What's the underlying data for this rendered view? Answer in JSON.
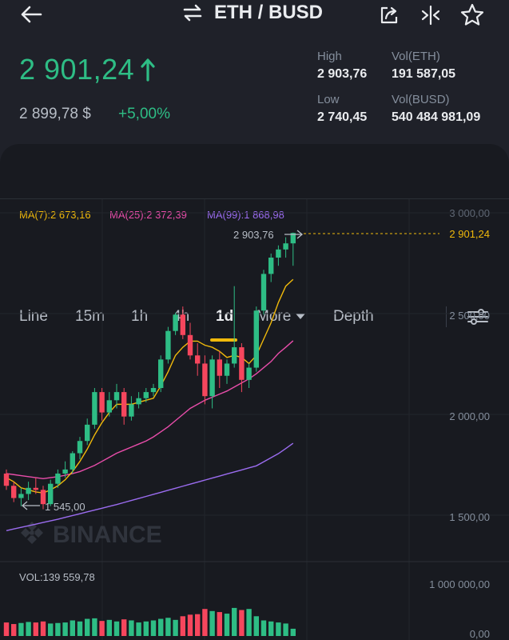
{
  "header": {
    "pair": "ETH / BUSD"
  },
  "ticker": {
    "last_price": "2 901,24",
    "usd_price": "2 899,78 $",
    "change": "+5,00%",
    "high_label": "High",
    "high_value": "2 903,76",
    "low_label": "Low",
    "low_value": "2 740,45",
    "vol_eth_label": "Vol(ETH)",
    "vol_eth_value": "191 587,05",
    "vol_busd_label": "Vol(BUSD)",
    "vol_busd_value": "540 484 981,09"
  },
  "tabs": [
    {
      "label": "Line"
    },
    {
      "label": "15m"
    },
    {
      "label": "1h"
    },
    {
      "label": "4h"
    },
    {
      "label": "1d"
    },
    {
      "label": "More"
    },
    {
      "label": "Depth"
    }
  ],
  "active_tab": "1d",
  "indicators": {
    "ma7": "MA(7):2 673,16",
    "ma25": "MA(25):2 372,39",
    "ma99": "MA(99):1 868,98"
  },
  "chart": {
    "high_marker": "2 903,76",
    "low_marker": "1 545,00",
    "last_price_label": "2 901,24",
    "watermark": "BINANCE",
    "price_axis": [
      "3 000,00",
      "2 500,00",
      "2 000,00",
      "1 500,00"
    ],
    "volume_label": "VOL:139 559,78",
    "volume_axis": [
      "1 000 000,00",
      "0,00"
    ]
  },
  "colors": {
    "up": "#2ebd85",
    "down": "#f6465d",
    "ma7": "#f0b90b",
    "ma25": "#e84daa",
    "ma99": "#9b6cf0",
    "accent": "#f0b90b"
  },
  "chart_data": {
    "type": "candlestick",
    "ylim": [
      1400,
      3050
    ],
    "ohlc": [
      [
        1720,
        1740,
        1640,
        1660
      ],
      [
        1660,
        1680,
        1580,
        1600
      ],
      [
        1600,
        1650,
        1560,
        1620
      ],
      [
        1620,
        1680,
        1590,
        1650
      ],
      [
        1650,
        1700,
        1620,
        1640
      ],
      [
        1640,
        1660,
        1545,
        1570
      ],
      [
        1570,
        1690,
        1560,
        1670
      ],
      [
        1670,
        1740,
        1650,
        1720
      ],
      [
        1720,
        1780,
        1700,
        1740
      ],
      [
        1740,
        1830,
        1720,
        1820
      ],
      [
        1820,
        1900,
        1790,
        1880
      ],
      [
        1880,
        1990,
        1860,
        1960
      ],
      [
        1960,
        2140,
        1940,
        2120
      ],
      [
        2120,
        2140,
        1980,
        2020
      ],
      [
        2020,
        2120,
        2000,
        2080
      ],
      [
        2080,
        2160,
        2040,
        2120
      ],
      [
        2120,
        2140,
        1960,
        2000
      ],
      [
        2000,
        2100,
        1980,
        2060
      ],
      [
        2060,
        2120,
        2040,
        2090
      ],
      [
        2090,
        2140,
        2070,
        2120
      ],
      [
        2120,
        2160,
        2100,
        2140
      ],
      [
        2140,
        2300,
        2120,
        2280
      ],
      [
        2280,
        2440,
        2260,
        2420
      ],
      [
        2420,
        2510,
        2400,
        2500
      ],
      [
        2500,
        2540,
        2380,
        2400
      ],
      [
        2400,
        2460,
        2280,
        2300
      ],
      [
        2300,
        2360,
        2200,
        2260
      ],
      [
        2260,
        2300,
        2060,
        2100
      ],
      [
        2100,
        2300,
        2040,
        2280
      ],
      [
        2280,
        2320,
        2140,
        2200
      ],
      [
        2200,
        2280,
        2160,
        2260
      ],
      [
        2260,
        2640,
        2240,
        2340
      ],
      [
        2340,
        2360,
        2120,
        2180
      ],
      [
        2180,
        2260,
        2140,
        2240
      ],
      [
        2240,
        2540,
        2220,
        2520
      ],
      [
        2520,
        2720,
        2500,
        2700
      ],
      [
        2700,
        2800,
        2660,
        2780
      ],
      [
        2780,
        2840,
        2740,
        2820
      ],
      [
        2820,
        2880,
        2780,
        2850
      ],
      [
        2850,
        2903,
        2740,
        2901
      ]
    ],
    "ma7": [
      1700,
      1680,
      1650,
      1640,
      1630,
      1625,
      1640,
      1660,
      1690,
      1730,
      1780,
      1840,
      1910,
      1970,
      2020,
      2060,
      2060,
      2060,
      2070,
      2080,
      2090,
      2150,
      2220,
      2300,
      2340,
      2370,
      2370,
      2350,
      2340,
      2320,
      2290,
      2300,
      2290,
      2260,
      2300,
      2380,
      2460,
      2560,
      2640,
      2673
    ],
    "ma25": [
      1720,
      1715,
      1710,
      1705,
      1700,
      1695,
      1700,
      1705,
      1712,
      1720,
      1730,
      1745,
      1760,
      1780,
      1800,
      1820,
      1835,
      1850,
      1865,
      1880,
      1900,
      1925,
      1950,
      1980,
      2010,
      2040,
      2060,
      2080,
      2095,
      2110,
      2125,
      2145,
      2165,
      2185,
      2210,
      2240,
      2270,
      2310,
      2340,
      2372
    ],
    "ma99": [
      1440,
      1448,
      1456,
      1464,
      1472,
      1480,
      1488,
      1496,
      1505,
      1514,
      1523,
      1532,
      1541,
      1550,
      1559,
      1568,
      1578,
      1588,
      1598,
      1608,
      1618,
      1628,
      1638,
      1648,
      1658,
      1668,
      1678,
      1688,
      1698,
      1708,
      1718,
      1728,
      1738,
      1748,
      1758,
      1778,
      1798,
      1818,
      1843,
      1869
    ],
    "volume_ylim": [
      0,
      1000000
    ],
    "volume": [
      260000,
      230000,
      250000,
      270000,
      260000,
      280000,
      240000,
      250000,
      260000,
      300000,
      280000,
      330000,
      340000,
      290000,
      310000,
      280000,
      320000,
      300000,
      260000,
      280000,
      300000,
      330000,
      350000,
      310000,
      380000,
      410000,
      420000,
      520000,
      480000,
      460000,
      430000,
      540000,
      500000,
      520000,
      380000,
      300000,
      280000,
      260000,
      240000,
      139560
    ]
  }
}
